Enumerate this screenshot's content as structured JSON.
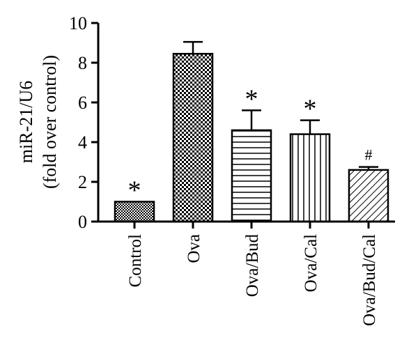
{
  "chart_data": {
    "type": "bar",
    "categories": [
      "Control",
      "Ova",
      "Ova/Bud",
      "Ova/Cal",
      "Ova/Bud/Cal"
    ],
    "values": [
      1.0,
      8.45,
      4.6,
      4.4,
      2.6
    ],
    "errors": [
      0.0,
      0.6,
      1.0,
      0.7,
      0.15
    ],
    "annotations": [
      "*",
      "",
      "*",
      "*",
      "#"
    ],
    "patterns": [
      "checker-fine",
      "checker-coarse",
      "horizontal-lines",
      "vertical-lines",
      "diagonal-lines"
    ],
    "title": "",
    "ylabel_lines": [
      "miR-21/U6",
      "(fold over control)"
    ],
    "xlabel": "",
    "ylim": [
      0,
      10
    ],
    "yticks": [
      0,
      2,
      4,
      6,
      8,
      10
    ],
    "ytick_labels": [
      "0",
      "2",
      "4",
      "6",
      "8",
      "10"
    ],
    "grid": false,
    "legend": "none",
    "colors": {
      "stroke": "#000000",
      "fill": "#ffffff"
    }
  }
}
